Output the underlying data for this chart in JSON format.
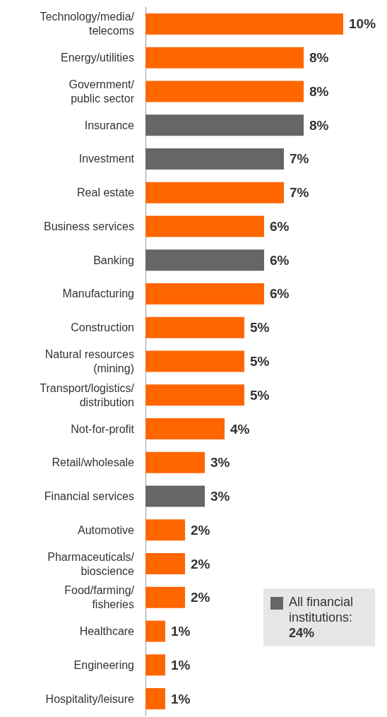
{
  "chart_data": {
    "type": "bar",
    "orientation": "horizontal",
    "categories": [
      "Technology/media/telecoms",
      "Energy/utilities",
      "Government/public sector",
      "Insurance",
      "Investment",
      "Real estate",
      "Business services",
      "Banking",
      "Manufacturing",
      "Construction",
      "Natural resources (mining)",
      "Transport/logistics/distribution",
      "Not-for-profit",
      "Retail/wholesale",
      "Financial services",
      "Automotive",
      "Pharmaceuticals/bioscience",
      "Food/farming/fisheries",
      "Healthcare",
      "Engineering",
      "Hospitality/leisure"
    ],
    "values": [
      10,
      8,
      8,
      8,
      7,
      7,
      6,
      6,
      6,
      5,
      5,
      5,
      4,
      3,
      3,
      2,
      2,
      2,
      1,
      1,
      1
    ],
    "value_labels": [
      "10%",
      "8%",
      "8%",
      "8%",
      "7%",
      "7%",
      "6%",
      "6%",
      "6%",
      "5%",
      "5%",
      "5%",
      "4%",
      "3%",
      "3%",
      "2%",
      "2%",
      "2%",
      "1%",
      "1%",
      "1%"
    ],
    "colors": [
      "#ff6600",
      "#ff6600",
      "#ff6600",
      "#666666",
      "#666666",
      "#ff6600",
      "#ff6600",
      "#666666",
      "#ff6600",
      "#ff6600",
      "#ff6600",
      "#ff6600",
      "#ff6600",
      "#ff6600",
      "#666666",
      "#ff6600",
      "#ff6600",
      "#ff6600",
      "#ff6600",
      "#ff6600",
      "#ff6600"
    ],
    "annotations": [
      "All financial institutions: 24%"
    ]
  }
}
